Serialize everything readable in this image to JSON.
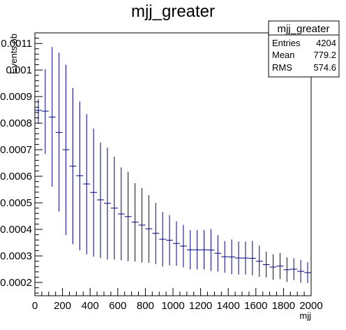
{
  "chart_data": {
    "type": "histogram",
    "title": "mjj_greater",
    "xlabel": "mjj",
    "ylabel": "Events,ob",
    "xlim": [
      0,
      2000
    ],
    "ylim": [
      0.00015,
      0.00114
    ],
    "xticks": [
      0,
      200,
      400,
      600,
      800,
      1000,
      1200,
      1400,
      1600,
      1800,
      2000
    ],
    "yticks": [
      0.0002,
      0.0003,
      0.0004,
      0.0005,
      0.0006,
      0.0007,
      0.0008,
      0.0009,
      0.001,
      0.0011
    ],
    "ytick_labels": [
      "0.0002",
      "0.0003",
      "0.0004",
      "0.0005",
      "0.0006",
      "0.0007",
      "0.0008",
      "0.0009",
      "0.001",
      "0.0011"
    ],
    "bin_width": 50,
    "series": [
      {
        "color": "#00007f",
        "x": [
          25,
          75,
          125,
          175,
          225,
          275,
          325,
          375,
          425,
          475,
          525,
          575,
          625,
          675,
          725,
          775,
          825,
          875,
          925,
          975,
          1025,
          1075,
          1125,
          1175,
          1225,
          1275,
          1325,
          1375,
          1425,
          1475,
          1525,
          1575,
          1625,
          1675,
          1725,
          1775,
          1825,
          1875,
          1925,
          1975
        ],
        "values": [
          0.000848,
          0.000845,
          0.000823,
          0.000765,
          0.0007,
          0.000638,
          0.000602,
          0.000571,
          0.000539,
          0.000511,
          0.000498,
          0.00048,
          0.000458,
          0.000448,
          0.000427,
          0.000416,
          0.000402,
          0.000385,
          0.000363,
          0.000359,
          0.000347,
          0.000337,
          0.000323,
          0.000323,
          0.000323,
          0.000322,
          0.00031,
          0.000297,
          0.000296,
          0.000292,
          0.000292,
          0.000291,
          0.00028,
          0.000267,
          0.000258,
          0.000262,
          0.000248,
          0.00025,
          0.000242,
          0.000237
        ],
        "err_low": [
          0.000798,
          0.000684,
          0.000561,
          0.000467,
          0.000378,
          0.000344,
          0.000321,
          0.000306,
          0.000297,
          0.000292,
          0.000287,
          0.000286,
          0.000284,
          0.00028,
          0.000279,
          0.000275,
          0.000274,
          0.000269,
          0.00026,
          0.000264,
          0.000263,
          0.000257,
          0.000249,
          0.000249,
          0.000249,
          0.000243,
          0.000241,
          0.000237,
          0.000231,
          0.00023,
          0.00023,
          0.000227,
          0.000221,
          0.000219,
          0.00021,
          0.000213,
          0.000202,
          0.000209,
          0.000199,
          0.000198
        ],
        "err_high": [
          0.000891,
          0.001003,
          0.001087,
          0.001065,
          0.00102,
          0.000932,
          0.000881,
          0.000834,
          0.00078,
          0.000727,
          0.000708,
          0.000674,
          0.000633,
          0.000617,
          0.000574,
          0.000556,
          0.000529,
          0.0005,
          0.000466,
          0.000454,
          0.00043,
          0.000417,
          0.000397,
          0.000397,
          0.000397,
          0.000401,
          0.000378,
          0.000356,
          0.000362,
          0.000354,
          0.000354,
          0.000356,
          0.000339,
          0.000316,
          0.000306,
          0.000311,
          0.000295,
          0.000291,
          0.000285,
          0.000276
        ]
      }
    ],
    "grid": false,
    "legend": "none",
    "stats": {
      "name": "mjj_greater",
      "rows": [
        {
          "label": "Entries",
          "value": "4204"
        },
        {
          "label": "Mean",
          "value": "779.2"
        },
        {
          "label": "RMS",
          "value": "574.6"
        }
      ],
      "placement": "top-right"
    }
  }
}
